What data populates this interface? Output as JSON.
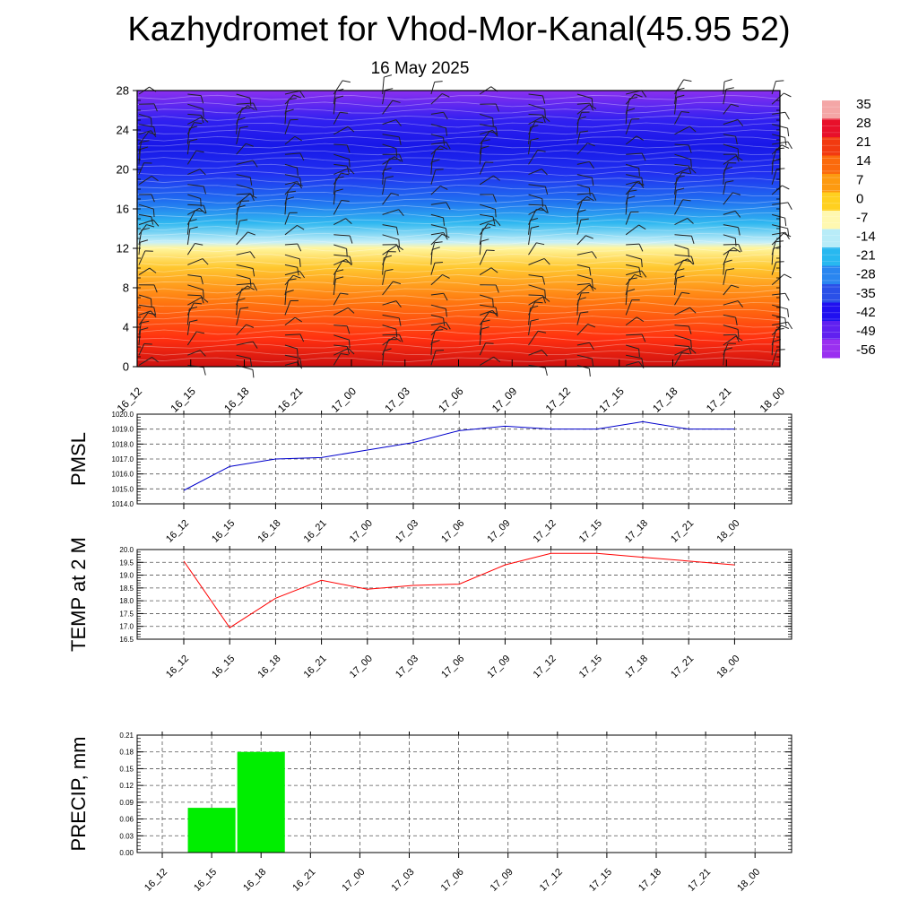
{
  "title": "Kazhydromet for Vhod-Mor-Kanal(45.95 52)",
  "subtitle": "16 May 2025",
  "x_labels": [
    "16_12",
    "16_15",
    "16_18",
    "16_21",
    "17_00",
    "17_03",
    "17_06",
    "17_09",
    "17_12",
    "17_15",
    "17_18",
    "17_21",
    "18_00"
  ],
  "colorbar": {
    "labels": [
      "35",
      "28",
      "21",
      "14",
      "7",
      "0",
      "-7",
      "-14",
      "-21",
      "-28",
      "-35",
      "-42",
      "-49",
      "-56"
    ],
    "stops": [
      "#f4a6a6",
      "#e8102a",
      "#f23a10",
      "#fb6a0c",
      "#fd9a10",
      "#ffd020",
      "#fff8b0",
      "#b8ecf8",
      "#28b8f0",
      "#2a86f0",
      "#2a50e8",
      "#2010f0",
      "#6020f0",
      "#9a30f0"
    ]
  },
  "chart_data": [
    {
      "type": "heatmap",
      "name": "upper-air",
      "title": "",
      "ylabel": "",
      "y_ticks": [
        "0",
        "4",
        "8",
        "12",
        "16",
        "20",
        "24",
        "28"
      ],
      "ylim": [
        0,
        28
      ],
      "colors": {
        "c1": "#cc1010",
        "c2": "#ff3010",
        "c3": "#ff7a10",
        "c4": "#ffc830",
        "c5": "#fff6a0",
        "c6": "#c8f0f8",
        "c7": "#30b8f0",
        "c8": "#2070f0",
        "c9": "#2030f0",
        "c10": "#1818e8",
        "c11": "#3020f0",
        "c12": "#8a30f0"
      }
    },
    {
      "type": "line",
      "name": "pmsl",
      "ylabel": "PMSL",
      "color": "#0000cc",
      "ylim": [
        1014.0,
        1020.0
      ],
      "y_ticks": [
        "1014.0",
        "1015.0",
        "1016.0",
        "1017.0",
        "1018.0",
        "1019.0",
        "1020.0"
      ],
      "values": [
        1014.9,
        1016.5,
        1017.0,
        1017.1,
        1017.6,
        1018.1,
        1018.9,
        1019.2,
        1019.0,
        1019.0,
        1019.5,
        1019.0,
        1019.0
      ]
    },
    {
      "type": "line",
      "name": "temp",
      "ylabel": "TEMP at 2 M",
      "color": "#ff0000",
      "ylim": [
        16.5,
        20.0
      ],
      "y_ticks": [
        "16.5",
        "17.0",
        "17.5",
        "18.0",
        "18.5",
        "19.0",
        "19.5",
        "20.0"
      ],
      "values": [
        19.55,
        16.95,
        18.1,
        18.8,
        18.45,
        18.6,
        18.65,
        19.4,
        19.85,
        19.85,
        19.7,
        19.55,
        19.4
      ]
    },
    {
      "type": "bar",
      "name": "precip",
      "ylabel": "PRECIP, mm",
      "color": "#00ee00",
      "ylim": [
        0,
        0.21
      ],
      "y_ticks": [
        "0.00",
        "0.03",
        "0.06",
        "0.09",
        "0.12",
        "0.15",
        "0.18",
        "0.21"
      ],
      "values": [
        0,
        0.08,
        0.18,
        0,
        0,
        0,
        0,
        0,
        0,
        0,
        0,
        0,
        0
      ]
    }
  ]
}
